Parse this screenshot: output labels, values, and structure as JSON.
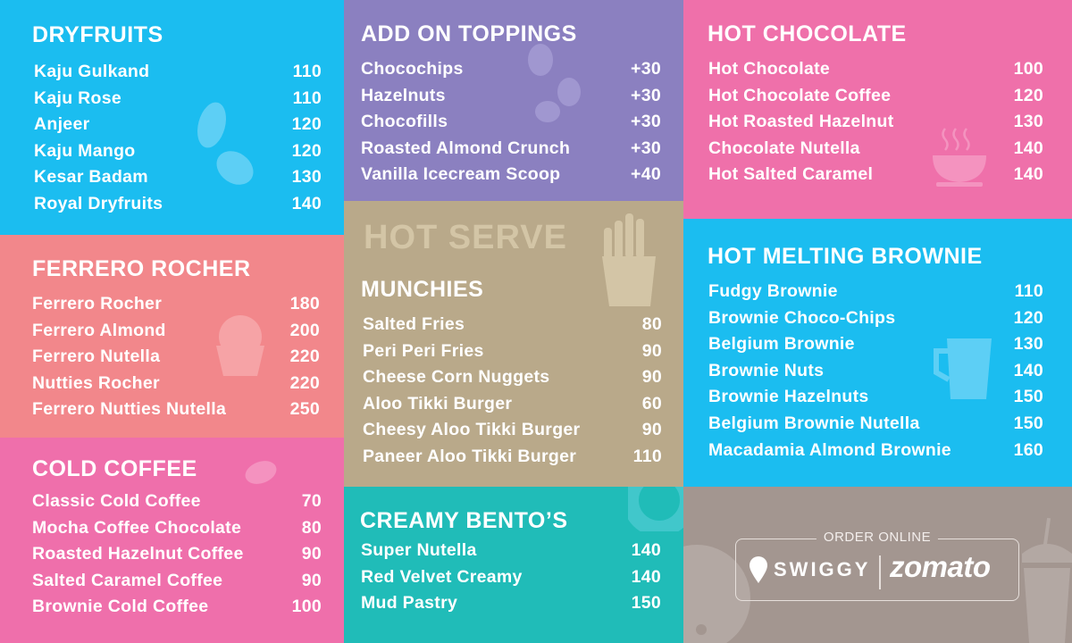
{
  "colors": {
    "dryfruits": "#1bbdf0",
    "ferrero": "#f2878b",
    "cold_coffee": "#ef6fab",
    "toppings": "#8b80c0",
    "hot_serve": "#b9a98a",
    "bento": "#20bcb8",
    "hot_chocolate": "#ef70aa",
    "brownie": "#1bbdf0",
    "order": "#a39690"
  },
  "sections": {
    "dryfruits": {
      "title": "DRYFRUITS",
      "icon": "almond-pistachio-icon",
      "items": [
        {
          "name": "Kaju Gulkand",
          "price": "110"
        },
        {
          "name": "Kaju Rose",
          "price": "110"
        },
        {
          "name": "Anjeer",
          "price": "120"
        },
        {
          "name": "Kaju Mango",
          "price": "120"
        },
        {
          "name": "Kesar Badam",
          "price": "130"
        },
        {
          "name": "Royal Dryfruits",
          "price": "140"
        }
      ]
    },
    "ferrero": {
      "title": "FERRERO ROCHER",
      "icon": "cupcake-icon",
      "items": [
        {
          "name": "Ferrero Rocher",
          "price": "180"
        },
        {
          "name": "Ferrero Almond",
          "price": "200"
        },
        {
          "name": "Ferrero Nutella",
          "price": "220"
        },
        {
          "name": "Nutties Rocher",
          "price": "220"
        },
        {
          "name": "Ferrero Nutties Nutella",
          "price": "250"
        }
      ]
    },
    "cold_coffee": {
      "title": "COLD COFFEE",
      "icon": "coffee-bean-icon",
      "items": [
        {
          "name": "Classic Cold Coffee",
          "price": "70"
        },
        {
          "name": "Mocha Coffee Chocolate",
          "price": "80"
        },
        {
          "name": "Roasted Hazelnut Coffee",
          "price": "90"
        },
        {
          "name": "Salted Caramel Coffee",
          "price": "90"
        },
        {
          "name": "Brownie Cold Coffee",
          "price": "100"
        }
      ]
    },
    "toppings": {
      "title": "ADD ON TOPPINGS",
      "icon": "nuts-icon",
      "items": [
        {
          "name": "Chocochips",
          "price": "+30"
        },
        {
          "name": "Hazelnuts",
          "price": "+30"
        },
        {
          "name": "Chocofills",
          "price": "+30"
        },
        {
          "name": "Roasted Almond Crunch",
          "price": "+30"
        },
        {
          "name": "Vanilla Icecream Scoop",
          "price": "+40"
        }
      ]
    },
    "munchies": {
      "watermark": "HOT SERVE",
      "title": "MUNCHIES",
      "icon": "fries-icon",
      "items": [
        {
          "name": "Salted Fries",
          "price": "80"
        },
        {
          "name": "Peri Peri Fries",
          "price": "90"
        },
        {
          "name": "Cheese Corn Nuggets",
          "price": "90"
        },
        {
          "name": "Aloo Tikki Burger",
          "price": "60"
        },
        {
          "name": "Cheesy Aloo Tikki Burger",
          "price": "90"
        },
        {
          "name": "Paneer Aloo Tikki Burger",
          "price": "110"
        }
      ]
    },
    "bento": {
      "title": "CREAMY BENTO’S",
      "icon": "donut-icon",
      "items": [
        {
          "name": "Super Nutella",
          "price": "140"
        },
        {
          "name": "Red Velvet Creamy",
          "price": "140"
        },
        {
          "name": "Mud Pastry",
          "price": "150"
        }
      ]
    },
    "hot_chocolate": {
      "title": "HOT CHOCOLATE",
      "icon": "hot-cup-icon",
      "items": [
        {
          "name": "Hot Chocolate",
          "price": "100"
        },
        {
          "name": "Hot Chocolate Coffee",
          "price": "120"
        },
        {
          "name": "Hot Roasted Hazelnut",
          "price": "130"
        },
        {
          "name": "Chocolate Nutella",
          "price": "140"
        },
        {
          "name": "Hot Salted Caramel",
          "price": "140"
        }
      ]
    },
    "brownie": {
      "title": "HOT MELTING BROWNIE",
      "icon": "milk-jug-icon",
      "items": [
        {
          "name": "Fudgy Brownie",
          "price": "110"
        },
        {
          "name": "Brownie Choco-Chips",
          "price": "120"
        },
        {
          "name": "Belgium Brownie",
          "price": "130"
        },
        {
          "name": "Brownie Nuts",
          "price": "140"
        },
        {
          "name": "Brownie Hazelnuts",
          "price": "150"
        },
        {
          "name": "Belgium Brownie Nutella",
          "price": "150"
        },
        {
          "name": "Macadamia Almond Brownie",
          "price": "160"
        }
      ]
    }
  },
  "order_online": {
    "label": "ORDER ONLINE",
    "partners": [
      "SWIGGY",
      "zomato"
    ]
  }
}
